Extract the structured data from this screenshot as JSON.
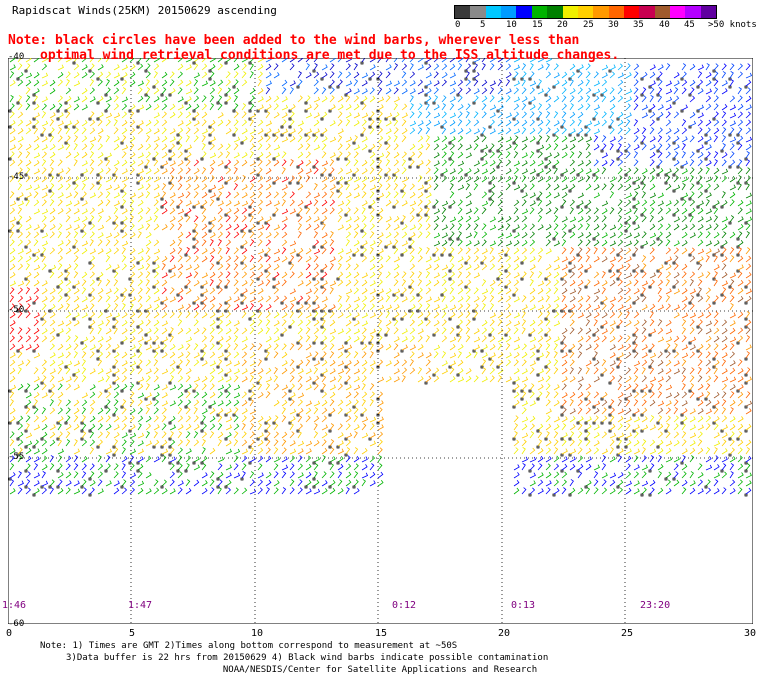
{
  "title": "Rapidscat Winds(25KM) 20150629 ascending",
  "note": {
    "line1": "Note: black circles have been added to the wind barbs, wherever less than",
    "line2": "optimal wind retrieval conditions are met due to the ISS altitude changes."
  },
  "legend": {
    "colors": [
      "#3a3a3a",
      "#8a8a8a",
      "#00c8ff",
      "#009cff",
      "#0000ff",
      "#00b400",
      "#008000",
      "#f0f000",
      "#ffd000",
      "#ff9900",
      "#ff6600",
      "#ff0000",
      "#c80050",
      "#a05a2c",
      "#ff00ff",
      "#b400ff",
      "#6000a0"
    ],
    "labels": [
      "0",
      "5",
      "10",
      "15",
      "20",
      "25",
      "30",
      "35",
      "40",
      "45",
      ">50 knots"
    ]
  },
  "axes": {
    "lat_labels": [
      "-40",
      "-45",
      "-50",
      "-55",
      "-60"
    ],
    "lon_labels": [
      "0",
      "5",
      "10",
      "15",
      "20",
      "25",
      "30"
    ]
  },
  "swath_times": [
    "1:46",
    "1:47",
    "0:12",
    "0:13",
    "23:20"
  ],
  "footer": {
    "line1": "Note: 1) Times are GMT 2)Times along bottom correspond to measurement at ~50S",
    "line2": "3)Data buffer is 22 hrs from 20150629 4) Black wind barbs indicate possible contamination",
    "line3": "NOAA/NESDIS/Center for Satellite Applications and Research"
  }
}
